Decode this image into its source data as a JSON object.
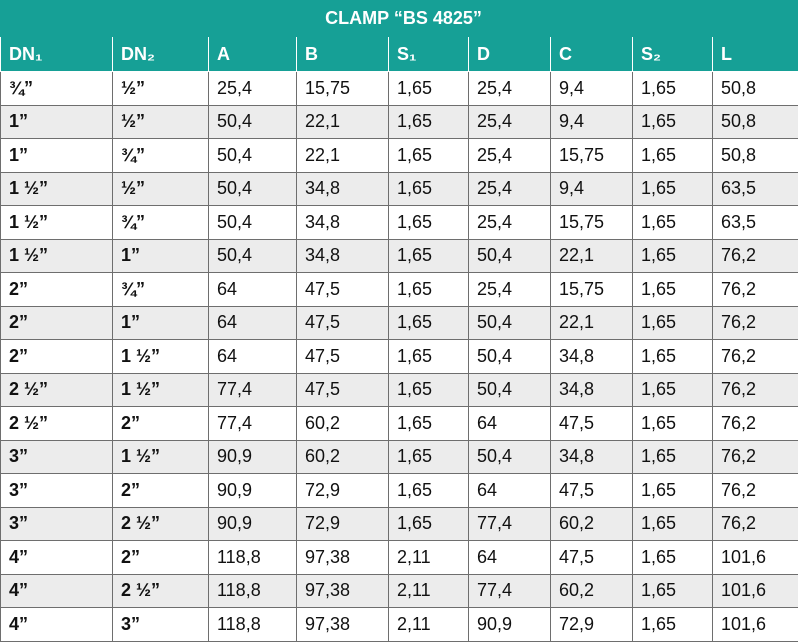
{
  "table": {
    "title": "CLAMP “BS 4825”",
    "headers": [
      "DN₁",
      "DN₂",
      "A",
      "B",
      "S₁",
      "D",
      "C",
      "S₂",
      "L"
    ],
    "rows": [
      [
        "¾”",
        "½”",
        "25,4",
        "15,75",
        "1,65",
        "25,4",
        "9,4",
        "1,65",
        "50,8"
      ],
      [
        "1”",
        "½”",
        "50,4",
        "22,1",
        "1,65",
        "25,4",
        "9,4",
        "1,65",
        "50,8"
      ],
      [
        "1”",
        "¾”",
        "50,4",
        "22,1",
        "1,65",
        "25,4",
        "15,75",
        "1,65",
        "50,8"
      ],
      [
        "1 ½”",
        "½”",
        "50,4",
        "34,8",
        "1,65",
        "25,4",
        "9,4",
        "1,65",
        "63,5"
      ],
      [
        "1 ½”",
        "¾”",
        "50,4",
        "34,8",
        "1,65",
        "25,4",
        "15,75",
        "1,65",
        "63,5"
      ],
      [
        "1 ½”",
        "1”",
        "50,4",
        "34,8",
        "1,65",
        "50,4",
        "22,1",
        "1,65",
        "76,2"
      ],
      [
        "2”",
        "¾”",
        "64",
        "47,5",
        "1,65",
        "25,4",
        "15,75",
        "1,65",
        "76,2"
      ],
      [
        "2”",
        "1”",
        "64",
        "47,5",
        "1,65",
        "50,4",
        "22,1",
        "1,65",
        "76,2"
      ],
      [
        "2”",
        "1 ½”",
        "64",
        "47,5",
        "1,65",
        "50,4",
        "34,8",
        "1,65",
        "76,2"
      ],
      [
        "2 ½”",
        "1 ½”",
        "77,4",
        "47,5",
        "1,65",
        "50,4",
        "34,8",
        "1,65",
        "76,2"
      ],
      [
        "2 ½”",
        "2”",
        "77,4",
        "60,2",
        "1,65",
        "64",
        "47,5",
        "1,65",
        "76,2"
      ],
      [
        "3”",
        "1 ½”",
        "90,9",
        "60,2",
        "1,65",
        "50,4",
        "34,8",
        "1,65",
        "76,2"
      ],
      [
        "3”",
        "2”",
        "90,9",
        "72,9",
        "1,65",
        "64",
        "47,5",
        "1,65",
        "76,2"
      ],
      [
        "3”",
        "2 ½”",
        "90,9",
        "72,9",
        "1,65",
        "77,4",
        "60,2",
        "1,65",
        "76,2"
      ],
      [
        "4”",
        "2”",
        "118,8",
        "97,38",
        "2,11",
        "64",
        "47,5",
        "1,65",
        "101,6"
      ],
      [
        "4”",
        "2 ½”",
        "118,8",
        "97,38",
        "2,11",
        "77,4",
        "60,2",
        "1,65",
        "101,6"
      ],
      [
        "4”",
        "3”",
        "118,8",
        "97,38",
        "2,11",
        "90,9",
        "72,9",
        "1,65",
        "101,6"
      ]
    ]
  }
}
